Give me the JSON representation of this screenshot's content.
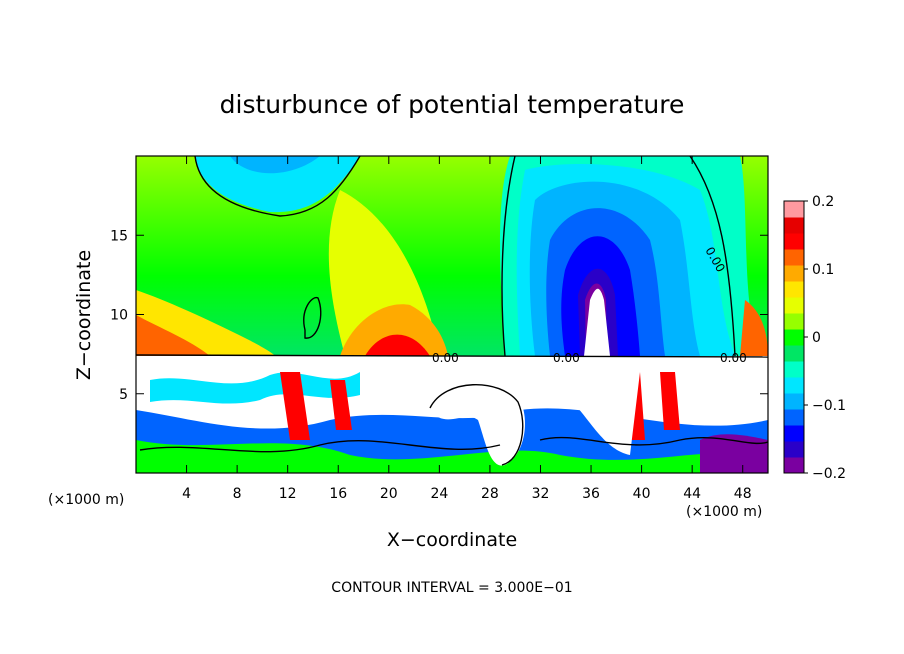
{
  "chart_data": {
    "type": "heatmap",
    "title": "disturbunce of potential temperature",
    "xlabel": "X−coordinate",
    "ylabel": "Z−coordinate",
    "x_unit_left": "(×1000 m)",
    "x_unit_right": "(×1000 m)",
    "xlim": [
      0,
      50
    ],
    "ylim": [
      0,
      20
    ],
    "x_ticks": [
      4,
      8,
      12,
      16,
      20,
      24,
      28,
      32,
      36,
      40,
      44,
      48
    ],
    "y_ticks": [
      5,
      10,
      15
    ],
    "colorbar": {
      "range": [
        -0.2,
        0.2
      ],
      "tick_values": [
        0.2,
        0.1,
        0,
        -0.1,
        -0.2
      ],
      "tick_labels": [
        "0.2",
        "0.1",
        "0",
        "−0.1",
        "−0.2"
      ],
      "colors": [
        "#7a00a0",
        "#2a00c8",
        "#0000ff",
        "#0064ff",
        "#00b4ff",
        "#00e6ff",
        "#00ffc8",
        "#00e664",
        "#00ff00",
        "#96ff00",
        "#e6ff00",
        "#ffe600",
        "#ffaa00",
        "#ff6400",
        "#ff0000",
        "#e60000",
        "#ff9aa0"
      ]
    },
    "contour_labels": [
      "0.00",
      "0.00",
      "0.00",
      "0.00"
    ],
    "footer": "CONTOUR INTERVAL = 3.000E−01",
    "grid": false
  }
}
